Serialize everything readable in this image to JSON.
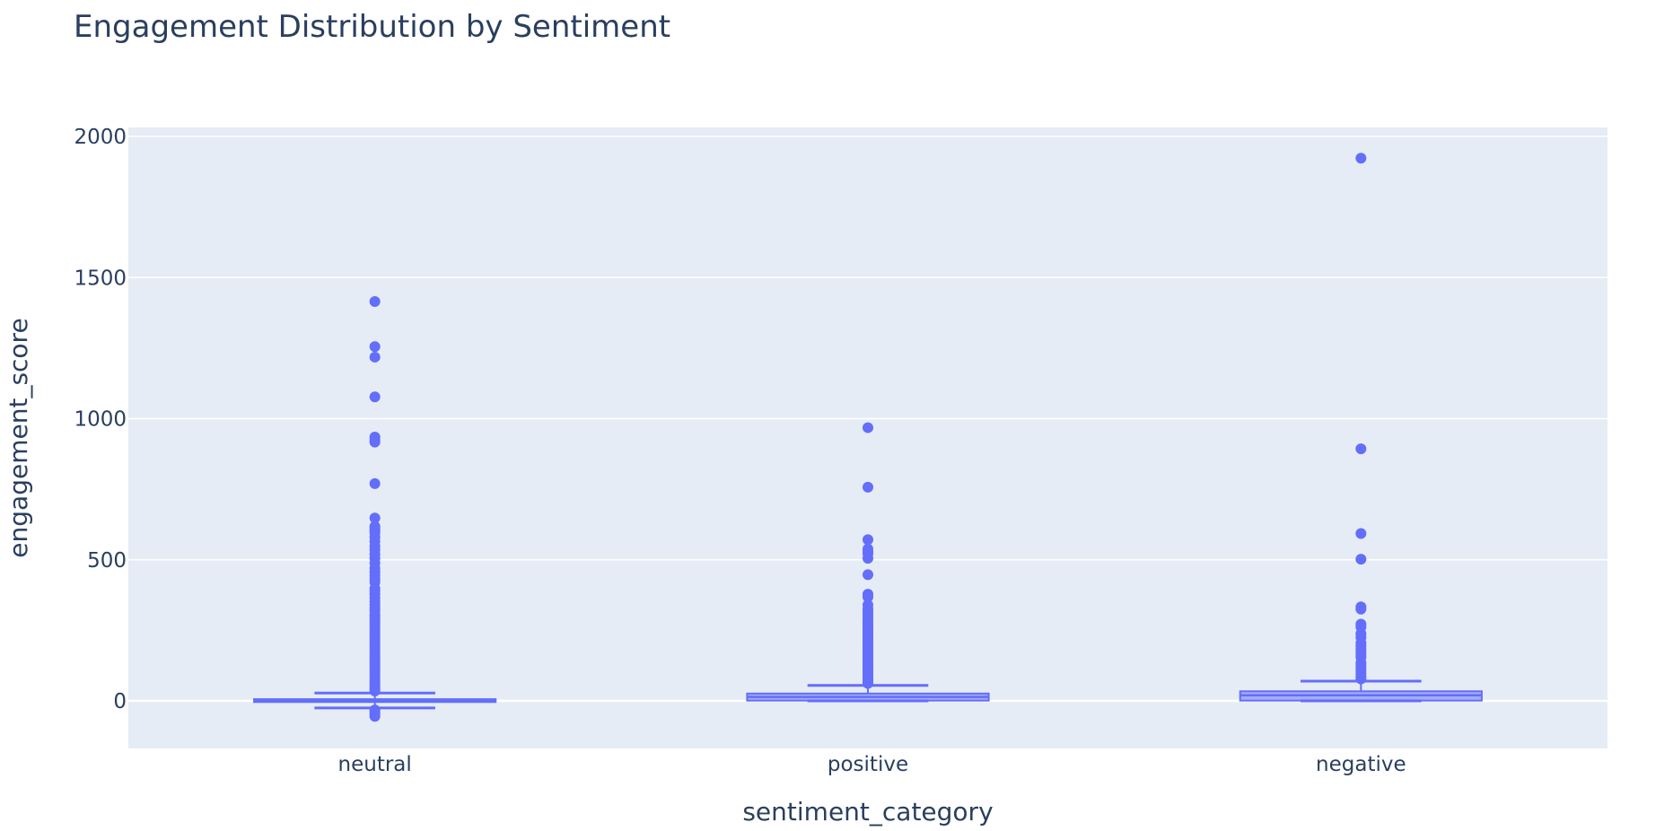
{
  "chart_data": {
    "type": "box",
    "title": "Engagement Distribution by Sentiment",
    "xlabel": "sentiment_category",
    "ylabel": "engagement_score",
    "ylim": [
      -165,
      2035
    ],
    "yticks": [
      0,
      500,
      1000,
      1500,
      2000
    ],
    "grid": true,
    "legend": "none",
    "colors": {
      "box": "#636efa",
      "plot_bg": "#e5ecf6",
      "grid": "#ffffff",
      "text": "#2a3f5f"
    },
    "categories": [
      "neutral",
      "positive",
      "negative"
    ],
    "series": [
      {
        "category": "neutral",
        "stats": {
          "lower_fence": -25,
          "q1": -4,
          "median": 1,
          "q3": 6,
          "upper_fence": 28
        },
        "outliers": [
          1415,
          1255,
          1218,
          1077,
          935,
          925,
          917,
          770,
          648,
          618,
          610,
          602,
          595,
          580,
          565,
          548,
          535,
          520,
          505,
          488,
          470,
          458,
          445,
          432,
          420,
          398,
          388,
          378,
          365,
          352,
          340,
          328,
          318,
          305,
          295,
          285,
          275,
          265,
          255,
          245,
          236,
          226,
          216,
          206,
          196,
          186,
          176,
          166,
          156,
          146,
          136,
          126,
          116,
          106,
          96,
          86,
          76,
          66,
          58,
          50,
          42,
          35,
          -32,
          -40,
          -48,
          -55
        ]
      },
      {
        "category": "positive",
        "stats": {
          "lower_fence": 0,
          "q1": 1,
          "median": 14,
          "q3": 26,
          "upper_fence": 55
        },
        "outliers": [
          968,
          757,
          571,
          538,
          528,
          522,
          505,
          447,
          378,
          368,
          340,
          325,
          315,
          305,
          295,
          285,
          278,
          270,
          262,
          255,
          248,
          240,
          232,
          225,
          218,
          210,
          202,
          195,
          188,
          180,
          172,
          165,
          158,
          150,
          142,
          135,
          128,
          120,
          112,
          105,
          98,
          90,
          82,
          75,
          68,
          62
        ]
      },
      {
        "category": "negative",
        "stats": {
          "lower_fence": 0,
          "q1": 1,
          "median": 20,
          "q3": 34,
          "upper_fence": 70
        },
        "outliers": [
          1923,
          893,
          593,
          502,
          333,
          325,
          272,
          262,
          238,
          225,
          205,
          195,
          185,
          175,
          165,
          155,
          135,
          125,
          115,
          105,
          95,
          85,
          78
        ]
      }
    ]
  }
}
